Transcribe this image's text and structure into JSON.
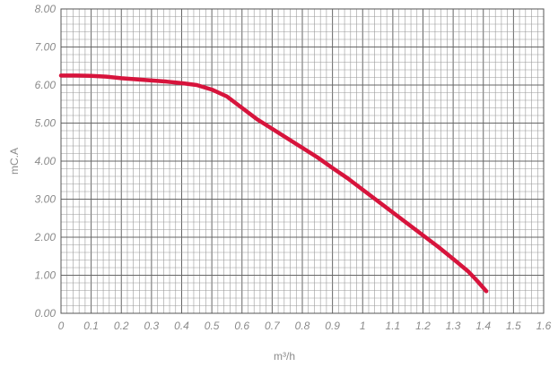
{
  "chart_data": {
    "type": "line",
    "xlabel": "m³/h",
    "ylabel": "mC.A",
    "xlim": [
      0,
      1.6
    ],
    "ylim": [
      0,
      8
    ],
    "grid": true,
    "x_ticks": [
      "0",
      "0.1",
      "0.2",
      "0.3",
      "0.4",
      "0.5",
      "0.6",
      "0.7",
      "0.8",
      "0.9",
      "1",
      "1.1",
      "1.2",
      "1.3",
      "1.4",
      "1.5",
      "1.6"
    ],
    "y_ticks": [
      "0.00",
      "1.00",
      "2.00",
      "3.00",
      "4.00",
      "5.00",
      "6.00",
      "7.00",
      "8.00"
    ],
    "series": [
      {
        "color": "#d7143c",
        "points": [
          [
            0.0,
            6.25
          ],
          [
            0.05,
            6.25
          ],
          [
            0.1,
            6.24
          ],
          [
            0.15,
            6.22
          ],
          [
            0.2,
            6.18
          ],
          [
            0.25,
            6.15
          ],
          [
            0.3,
            6.12
          ],
          [
            0.35,
            6.09
          ],
          [
            0.4,
            6.05
          ],
          [
            0.45,
            6.0
          ],
          [
            0.5,
            5.88
          ],
          [
            0.55,
            5.7
          ],
          [
            0.6,
            5.4
          ],
          [
            0.65,
            5.1
          ],
          [
            0.7,
            4.85
          ],
          [
            0.75,
            4.6
          ],
          [
            0.8,
            4.35
          ],
          [
            0.85,
            4.1
          ],
          [
            0.9,
            3.82
          ],
          [
            0.95,
            3.55
          ],
          [
            1.0,
            3.25
          ],
          [
            1.05,
            2.95
          ],
          [
            1.1,
            2.65
          ],
          [
            1.15,
            2.35
          ],
          [
            1.2,
            2.05
          ],
          [
            1.25,
            1.75
          ],
          [
            1.3,
            1.43
          ],
          [
            1.35,
            1.1
          ],
          [
            1.38,
            0.85
          ],
          [
            1.41,
            0.58
          ]
        ]
      }
    ]
  }
}
